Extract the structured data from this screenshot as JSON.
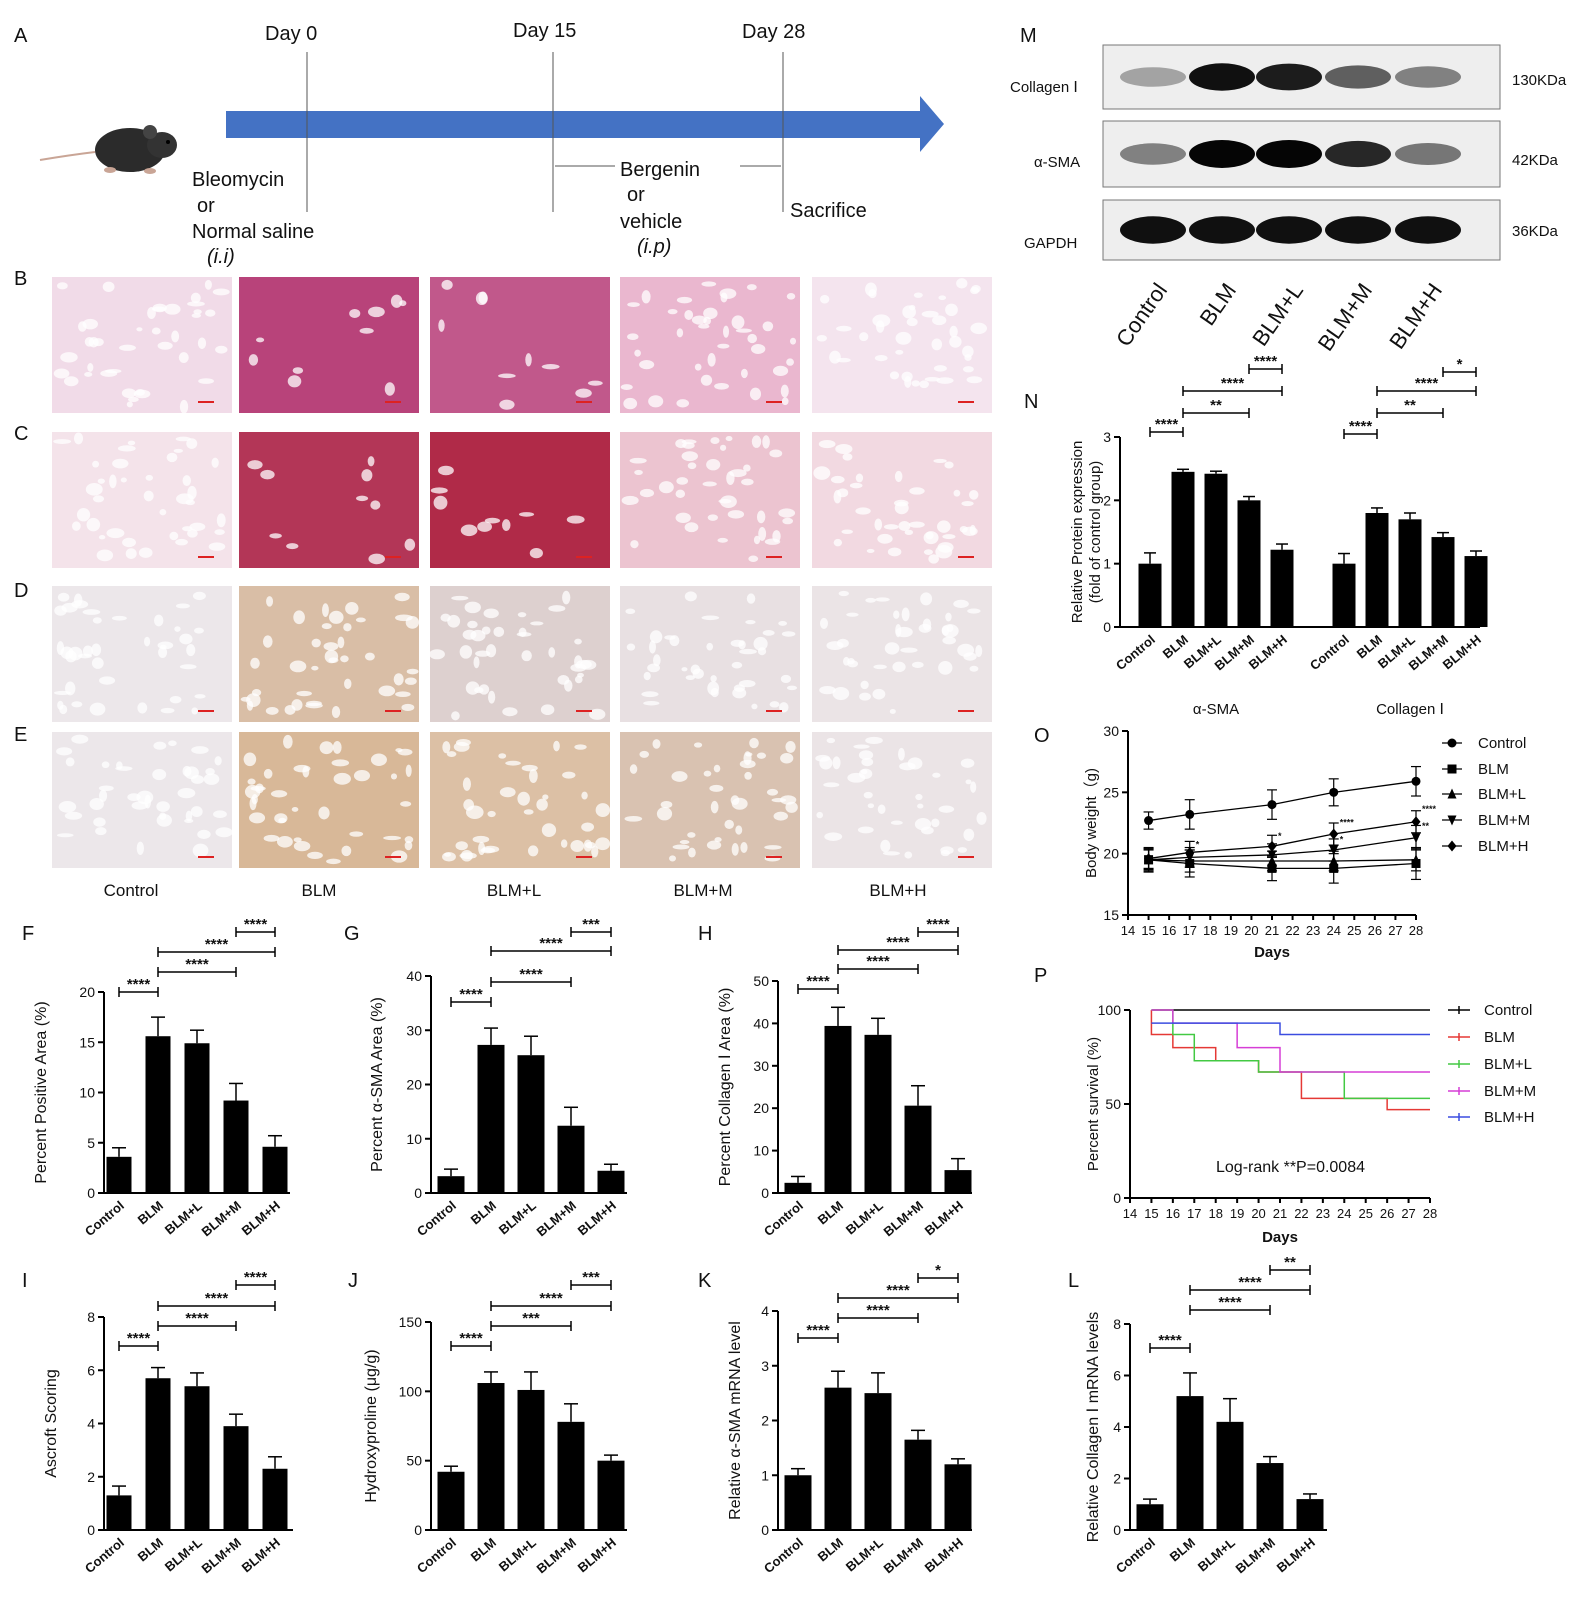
{
  "panel_letters": {
    "A": "A",
    "B": "B",
    "C": "C",
    "D": "D",
    "E": "E",
    "F": "F",
    "G": "G",
    "H": "H",
    "I": "I",
    "J": "J",
    "K": "K",
    "L": "L",
    "M": "M",
    "N": "N",
    "O": "O",
    "P": "P"
  },
  "timeline": {
    "days": [
      "Day 0",
      "Day 15",
      "Day 28"
    ],
    "bleo_line1": "Bleomycin",
    "bleo_line2": "or",
    "bleo_line3": "Normal saline",
    "bleo_route": "(i.i)",
    "berg_line1": "Bergenin",
    "berg_line2": "or",
    "berg_line3": "vehicle",
    "berg_route": "(i.p)",
    "sacrifice": "Sacrifice",
    "arrow_color": "#4472C4"
  },
  "histology": {
    "columns": [
      "Control",
      "BLM",
      "BLM+L",
      "BLM+M",
      "BLM+H"
    ],
    "rows": [
      {
        "letter": "B",
        "stain": "he",
        "colors": [
          "#f1dbe8",
          "#b8437a",
          "#c1588b",
          "#eab7cf",
          "#f4e4ee"
        ]
      },
      {
        "letter": "C",
        "stain": "masson",
        "colors": [
          "#f4e3ea",
          "#b33657",
          "#b02a48",
          "#ecc4d0",
          "#f2d9e1"
        ]
      },
      {
        "letter": "D",
        "stain": "ihc",
        "colors": [
          "#ece7ea",
          "#d9bea6",
          "#ddd0cf",
          "#e8e0e2",
          "#ebe4e6"
        ]
      },
      {
        "letter": "E",
        "stain": "ihc",
        "colors": [
          "#ece7ea",
          "#d8b898",
          "#dcc0a5",
          "#d9c2b1",
          "#ebe4e6"
        ]
      }
    ]
  },
  "western": {
    "labels": [
      "Collagen Ⅰ",
      "α-SMA",
      "GAPDH"
    ],
    "sizes": [
      "130KDa",
      "42KDa",
      "36KDa"
    ],
    "lanes": [
      "Control",
      "BLM",
      "BLM+L",
      "BLM+M",
      "BLM+H"
    ],
    "intensity": [
      [
        0.3,
        0.95,
        0.9,
        0.6,
        0.45
      ],
      [
        0.45,
        1.0,
        1.0,
        0.85,
        0.5
      ],
      [
        0.95,
        0.95,
        0.95,
        0.95,
        0.95
      ]
    ]
  },
  "chart_data": [
    {
      "panel": "F",
      "type": "bar",
      "categories": [
        "Control",
        "BLM",
        "BLM+L",
        "BLM+M",
        "BLM+H"
      ],
      "values": [
        3.6,
        15.6,
        14.9,
        9.2,
        4.6
      ],
      "errors": [
        0.9,
        1.9,
        1.3,
        1.7,
        1.1
      ],
      "ylabel": "Percent Positive Area (%)",
      "ylim": [
        0,
        20
      ],
      "yticks": [
        0,
        5,
        10,
        15,
        20
      ],
      "brackets": [
        {
          "a": 0,
          "b": 1,
          "label": "****"
        },
        {
          "a": 1,
          "b": 3,
          "label": "****"
        },
        {
          "a": 1,
          "b": 4,
          "label": "****"
        },
        {
          "a": 3,
          "b": 4,
          "label": "****"
        }
      ]
    },
    {
      "panel": "G",
      "type": "bar",
      "categories": [
        "Control",
        "BLM",
        "BLM+L",
        "BLM+M",
        "BLM+H"
      ],
      "values": [
        3.1,
        27.3,
        25.4,
        12.4,
        4.1
      ],
      "errors": [
        1.3,
        3.1,
        3.5,
        3.4,
        1.2
      ],
      "ylabel": "Percent α-SMA Area (%)",
      "ylim": [
        0,
        40
      ],
      "yticks": [
        0,
        10,
        20,
        30,
        40
      ],
      "brackets": [
        {
          "a": 0,
          "b": 1,
          "label": "****"
        },
        {
          "a": 1,
          "b": 3,
          "label": "****"
        },
        {
          "a": 1,
          "b": 4,
          "label": "****"
        },
        {
          "a": 3,
          "b": 4,
          "label": "***"
        }
      ]
    },
    {
      "panel": "H",
      "type": "bar",
      "categories": [
        "Control",
        "BLM",
        "BLM+L",
        "BLM+M",
        "BLM+H"
      ],
      "values": [
        2.4,
        39.4,
        37.3,
        20.6,
        5.4
      ],
      "errors": [
        1.5,
        4.4,
        3.9,
        4.7,
        2.7
      ],
      "ylabel": "Percent Collagen Ⅰ Area (%)",
      "ylim": [
        0,
        50
      ],
      "yticks": [
        0,
        10,
        20,
        30,
        40,
        50
      ],
      "brackets": [
        {
          "a": 0,
          "b": 1,
          "label": "****"
        },
        {
          "a": 1,
          "b": 3,
          "label": "****"
        },
        {
          "a": 1,
          "b": 4,
          "label": "****"
        },
        {
          "a": 3,
          "b": 4,
          "label": "****"
        }
      ]
    },
    {
      "panel": "I",
      "type": "bar",
      "categories": [
        "Control",
        "BLM",
        "BLM+L",
        "BLM+M",
        "BLM+H"
      ],
      "values": [
        1.3,
        5.7,
        5.4,
        3.9,
        2.3
      ],
      "errors": [
        0.35,
        0.4,
        0.5,
        0.45,
        0.45
      ],
      "ylabel": "Ascroft Scoring",
      "ylim": [
        0,
        8
      ],
      "yticks": [
        0,
        2,
        4,
        6,
        8
      ],
      "brackets": [
        {
          "a": 0,
          "b": 1,
          "label": "****"
        },
        {
          "a": 1,
          "b": 3,
          "label": "****"
        },
        {
          "a": 1,
          "b": 4,
          "label": "****"
        },
        {
          "a": 3,
          "b": 4,
          "label": "****"
        }
      ]
    },
    {
      "panel": "J",
      "type": "bar",
      "categories": [
        "Control",
        "BLM",
        "BLM+L",
        "BLM+M",
        "BLM+H"
      ],
      "values": [
        42,
        106,
        101,
        78,
        50
      ],
      "errors": [
        4,
        8,
        13,
        13,
        4
      ],
      "ylabel": "Hydroxyproline (μg/g)",
      "ylim": [
        0,
        150
      ],
      "yticks": [
        0,
        50,
        100,
        150
      ],
      "brackets": [
        {
          "a": 0,
          "b": 1,
          "label": "****"
        },
        {
          "a": 1,
          "b": 3,
          "label": "***"
        },
        {
          "a": 1,
          "b": 4,
          "label": "****"
        },
        {
          "a": 3,
          "b": 4,
          "label": "***"
        }
      ]
    },
    {
      "panel": "K",
      "type": "bar",
      "categories": [
        "Control",
        "BLM",
        "BLM+L",
        "BLM+M",
        "BLM+H"
      ],
      "values": [
        1.0,
        2.6,
        2.5,
        1.65,
        1.2
      ],
      "errors": [
        0.12,
        0.3,
        0.37,
        0.17,
        0.1
      ],
      "ylabel": "Relative α-SMA mRNA level",
      "ylim": [
        0,
        4
      ],
      "yticks": [
        0,
        1,
        2,
        3,
        4
      ],
      "brackets": [
        {
          "a": 0,
          "b": 1,
          "label": "****"
        },
        {
          "a": 1,
          "b": 3,
          "label": "****"
        },
        {
          "a": 1,
          "b": 4,
          "label": "****"
        },
        {
          "a": 3,
          "b": 4,
          "label": "*"
        }
      ]
    },
    {
      "panel": "L",
      "type": "bar",
      "categories": [
        "Control",
        "BLM",
        "BLM+L",
        "BLM+M",
        "BLM+H"
      ],
      "values": [
        1.0,
        5.2,
        4.2,
        2.6,
        1.2
      ],
      "errors": [
        0.2,
        0.9,
        0.9,
        0.25,
        0.2
      ],
      "ylabel": "Relative Collagen Ⅰ mRNA levels",
      "ylim": [
        0,
        8
      ],
      "yticks": [
        0,
        2,
        4,
        6,
        8
      ],
      "brackets": [
        {
          "a": 0,
          "b": 1,
          "label": "****"
        },
        {
          "a": 1,
          "b": 3,
          "label": "****"
        },
        {
          "a": 1,
          "b": 4,
          "label": "****"
        },
        {
          "a": 3,
          "b": 4,
          "label": "**"
        }
      ]
    },
    {
      "panel": "N",
      "type": "bar",
      "groups": [
        "α-SMA",
        "Collagen Ⅰ"
      ],
      "categories": [
        "Control",
        "BLM",
        "BLM+L",
        "BLM+M",
        "BLM+H"
      ],
      "series": [
        {
          "name": "α-SMA",
          "values": [
            1.0,
            2.45,
            2.42,
            2.0,
            1.22
          ],
          "errors": [
            0.17,
            0.04,
            0.04,
            0.06,
            0.09
          ]
        },
        {
          "name": "Collagen Ⅰ",
          "values": [
            1.0,
            1.8,
            1.7,
            1.42,
            1.12
          ],
          "errors": [
            0.16,
            0.08,
            0.1,
            0.07,
            0.08
          ]
        }
      ],
      "ylabel": "Relative Protein expression (fold of control group)",
      "ylim": [
        0,
        3
      ],
      "yticks": [
        0,
        1,
        2,
        3
      ],
      "brackets": [
        {
          "g": 0,
          "a": 0,
          "b": 1,
          "label": "****"
        },
        {
          "g": 0,
          "a": 1,
          "b": 3,
          "label": "**"
        },
        {
          "g": 0,
          "a": 1,
          "b": 4,
          "label": "****"
        },
        {
          "g": 0,
          "a": 3,
          "b": 4,
          "label": "****"
        },
        {
          "g": 1,
          "a": 0,
          "b": 1,
          "label": "****"
        },
        {
          "g": 1,
          "a": 1,
          "b": 3,
          "label": "**"
        },
        {
          "g": 1,
          "a": 1,
          "b": 4,
          "label": "****"
        },
        {
          "g": 1,
          "a": 3,
          "b": 4,
          "label": "*"
        }
      ]
    },
    {
      "panel": "O",
      "type": "line",
      "x": [
        15,
        17,
        21,
        24,
        28
      ],
      "xticks": [
        14,
        15,
        16,
        17,
        18,
        19,
        20,
        21,
        22,
        23,
        24,
        25,
        26,
        27,
        28
      ],
      "xlim": [
        14,
        28
      ],
      "ylim": [
        15,
        30
      ],
      "yticks": [
        15,
        20,
        25,
        30
      ],
      "xlabel": "Days",
      "ylabel": "Body weight（g)",
      "series": [
        {
          "name": "Control",
          "marker": "circle",
          "values": [
            22.7,
            23.2,
            24.0,
            25.0,
            25.9
          ],
          "errors": [
            0.7,
            1.2,
            1.2,
            1.1,
            1.2
          ]
        },
        {
          "name": "BLM",
          "marker": "square",
          "values": [
            19.5,
            19.2,
            18.8,
            18.8,
            19.2
          ],
          "errors": [
            1.0,
            1.1,
            1.0,
            1.2,
            1.3
          ]
        },
        {
          "name": "BLM+L",
          "marker": "triangle-up",
          "values": [
            19.5,
            19.4,
            19.4,
            19.4,
            19.5
          ],
          "errors": [
            0.9,
            0.9,
            0.8,
            0.8,
            0.9
          ]
        },
        {
          "name": "BLM+M",
          "marker": "triangle-down",
          "values": [
            19.5,
            19.7,
            19.9,
            20.3,
            21.3
          ],
          "errors": [
            0.8,
            0.8,
            0.9,
            0.9,
            1.0
          ]
        },
        {
          "name": "BLM+H",
          "marker": "diamond",
          "values": [
            19.6,
            20.1,
            20.6,
            21.6,
            22.6
          ],
          "errors": [
            0.8,
            0.9,
            0.9,
            0.9,
            0.9
          ]
        }
      ],
      "annotations": [
        {
          "x": 17,
          "y": 20.5,
          "label": "*"
        },
        {
          "x": 21,
          "y": 21.2,
          "label": "*"
        },
        {
          "x": 24,
          "y": 22.3,
          "label": "****"
        },
        {
          "x": 24,
          "y": 20.9,
          "label": "*"
        },
        {
          "x": 28,
          "y": 23.4,
          "label": "****"
        },
        {
          "x": 28,
          "y": 22.0,
          "label": "**"
        }
      ]
    },
    {
      "panel": "P",
      "type": "line",
      "step": true,
      "xticks": [
        14,
        15,
        16,
        17,
        18,
        19,
        20,
        21,
        22,
        23,
        24,
        25,
        26,
        27,
        28
      ],
      "xlim": [
        14,
        28
      ],
      "ylim": [
        0,
        100
      ],
      "yticks": [
        0,
        50,
        100
      ],
      "xlabel": "Days",
      "ylabel": "Percent survival (%)",
      "annotation": "Log-rank  **P=0.0084",
      "series": [
        {
          "name": "Control",
          "color": "#000000",
          "x": [
            15,
            28
          ],
          "values": [
            100,
            100
          ]
        },
        {
          "name": "BLM",
          "color": "#e53935",
          "x": [
            15,
            16,
            18,
            20,
            22,
            26,
            28
          ],
          "values": [
            87,
            80,
            73,
            67,
            53,
            47,
            47
          ]
        },
        {
          "name": "BLM+L",
          "color": "#43c943",
          "x": [
            15,
            16,
            17,
            20,
            21,
            24,
            28
          ],
          "values": [
            100,
            87,
            73,
            67,
            67,
            53,
            53
          ]
        },
        {
          "name": "BLM+M",
          "color": "#d63ed6",
          "x": [
            15,
            16,
            19,
            21,
            28
          ],
          "values": [
            100,
            93,
            80,
            67,
            67
          ]
        },
        {
          "name": "BLM+H",
          "color": "#3b4de0",
          "x": [
            16,
            21,
            28
          ],
          "values": [
            93,
            87,
            87
          ]
        }
      ]
    }
  ]
}
